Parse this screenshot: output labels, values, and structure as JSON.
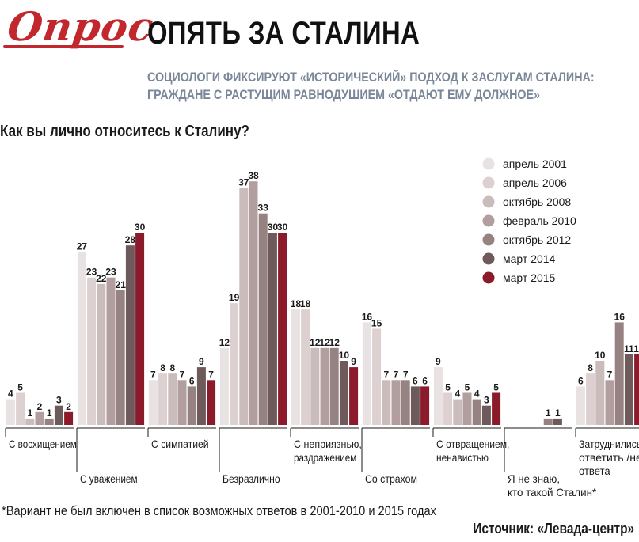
{
  "logo": {
    "text": "Опрос"
  },
  "header": {
    "title": "ОПЯТЬ ЗА СТАЛИНА",
    "subtitle_line1": "СОЦИОЛОГИ ФИКСИРУЮТ «ИСТОРИЧЕСКИЙ» ПОДХОД К ЗАСЛУГАМ СТАЛИНА:",
    "subtitle_line2": "ГРАЖДАНЕ С РАСТУЩИМ РАВНОДУШИЕМ «ОТДАЮТ ЕМУ ДОЛЖНОЕ»"
  },
  "colors": {
    "series": [
      "#e9e2e2",
      "#ddd0d0",
      "#cbbcbc",
      "#b29e9e",
      "#978282",
      "#6e5a5a",
      "#8b1a2b"
    ]
  },
  "chart_data": {
    "type": "bar",
    "title": "Как вы лично относитесь к Сталину?",
    "categories": [
      [
        "С восхищением"
      ],
      [
        "С уважением"
      ],
      [
        "С симпатией"
      ],
      [
        "Безразлично"
      ],
      [
        "С неприязнью,",
        "раздражением"
      ],
      [
        "Со страхом"
      ],
      [
        "С отвращением,",
        "ненавистью"
      ],
      [
        "Я не знаю,",
        "кто такой Сталин*"
      ],
      [
        "Затруднились",
        "ответить /нет",
        "ответа"
      ]
    ],
    "series": [
      {
        "name": "апрель 2001",
        "values": [
          4,
          27,
          7,
          12,
          18,
          16,
          9,
          null,
          6
        ]
      },
      {
        "name": "апрель 2006",
        "values": [
          5,
          23,
          8,
          19,
          18,
          15,
          5,
          null,
          8
        ]
      },
      {
        "name": "октябрь 2008",
        "values": [
          1,
          22,
          8,
          37,
          12,
          7,
          4,
          null,
          10
        ]
      },
      {
        "name": "февраль 2010",
        "values": [
          2,
          23,
          7,
          38,
          12,
          7,
          5,
          null,
          7
        ]
      },
      {
        "name": "октябрь 2012",
        "values": [
          1,
          21,
          6,
          33,
          12,
          7,
          4,
          1,
          16
        ]
      },
      {
        "name": "март 2014",
        "values": [
          3,
          28,
          9,
          30,
          10,
          6,
          3,
          1,
          11
        ]
      },
      {
        "name": "март 2015",
        "values": [
          2,
          30,
          7,
          30,
          9,
          6,
          5,
          null,
          11
        ]
      }
    ],
    "ylim": [
      0,
      40
    ],
    "legend": "top-right"
  },
  "footnote": "*Вариант не был включен в список возможных ответов в 2001-2010 и 2015 годах",
  "source": "Источник: «Левада-центр»"
}
